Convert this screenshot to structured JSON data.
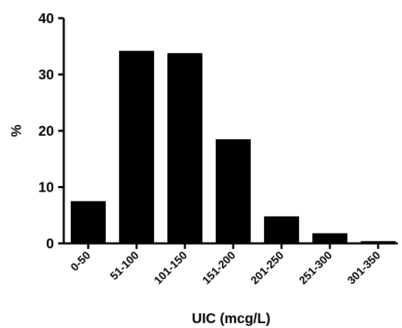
{
  "chart_data": {
    "type": "bar",
    "categories": [
      "0-50",
      "51-100",
      "101-150",
      "151-200",
      "201-250",
      "251-300",
      "301-350"
    ],
    "values": [
      7.5,
      34.2,
      33.8,
      18.5,
      4.8,
      1.8,
      0.4
    ],
    "title": "",
    "xlabel": "UIC (mcg/L)",
    "ylabel": "%",
    "ylim": [
      0,
      40
    ],
    "yticks": [
      0,
      10,
      20,
      30,
      40
    ],
    "grid": false,
    "bar_color": "#000000"
  }
}
